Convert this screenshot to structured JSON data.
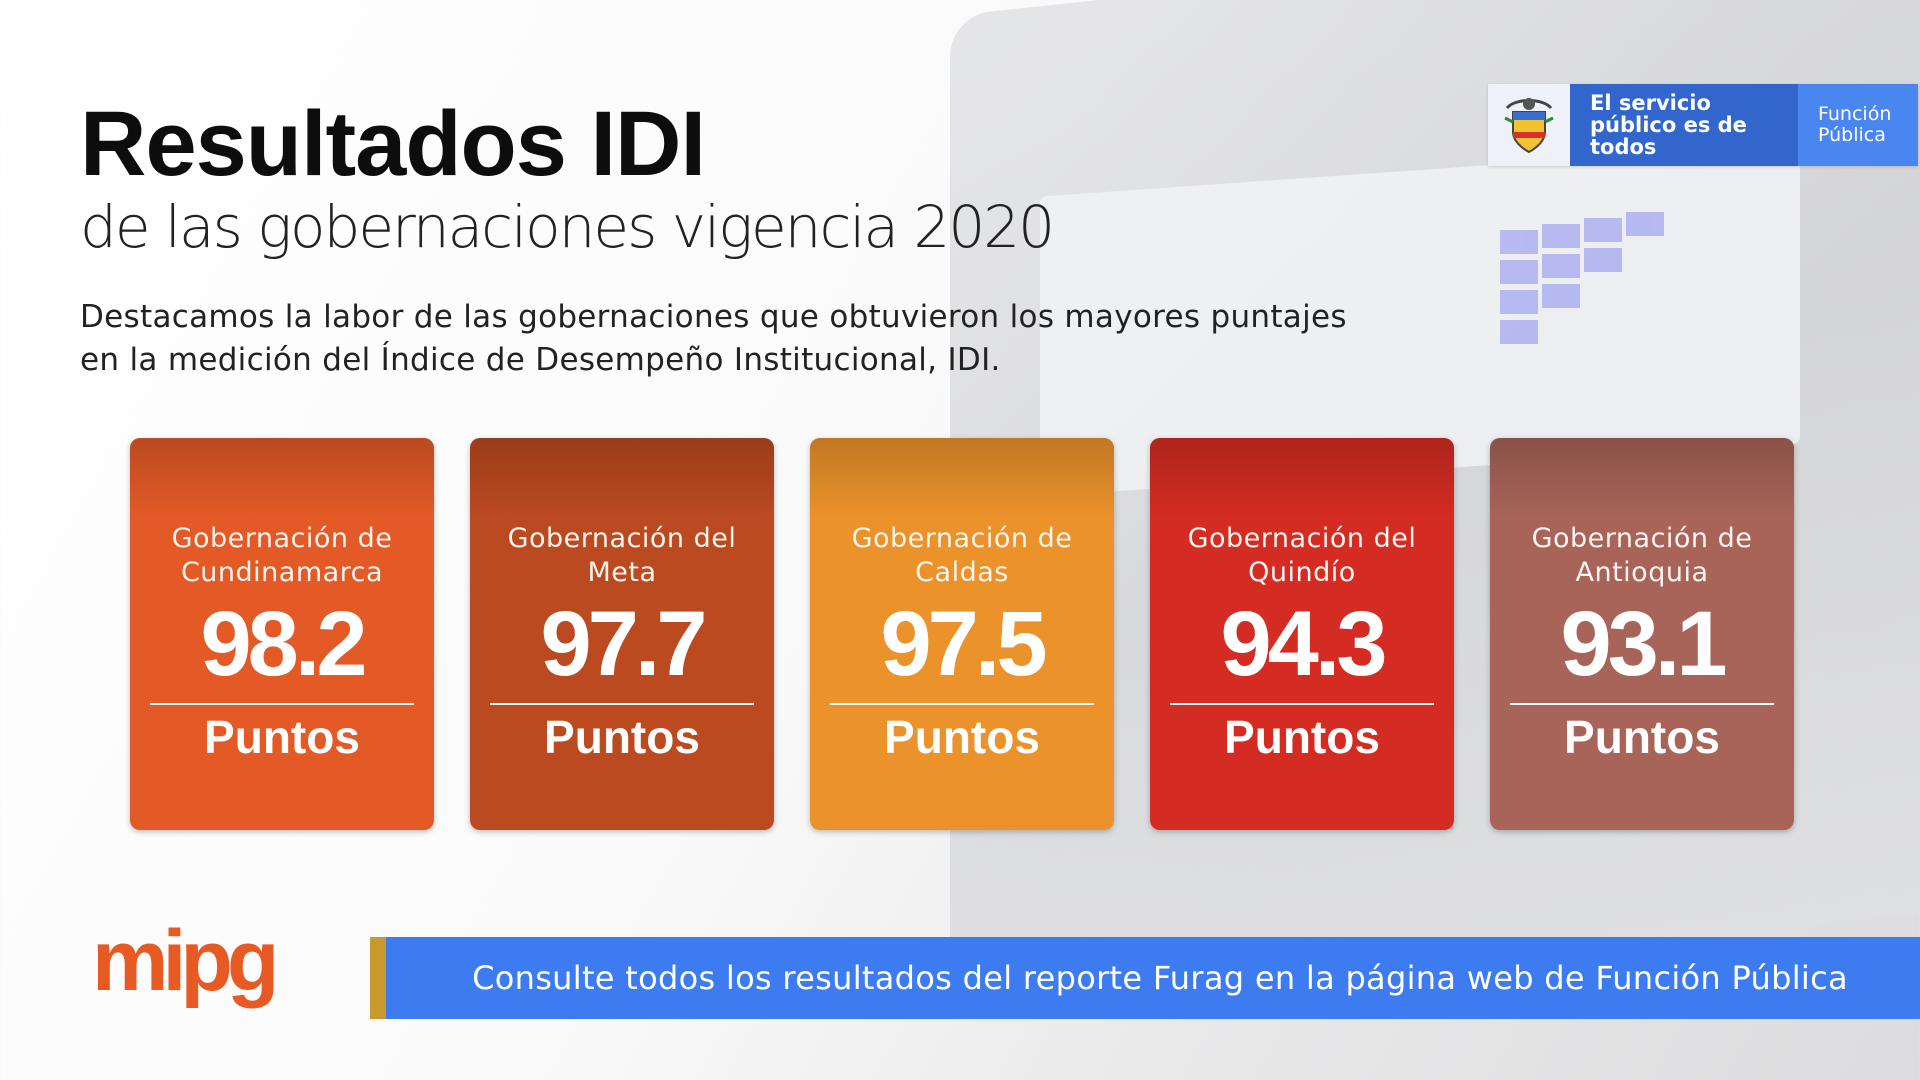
{
  "header": {
    "title": "Resultados IDI",
    "subtitle": "de las gobernaciones vigencia 2020",
    "intro": "Destacamos la labor de las gobernaciones que obtuvieron los mayores puntajes en la medición del Índice de Desempeño Institucional, IDI."
  },
  "brand": {
    "slogan": "El servicio público es de todos",
    "entity": "Función Pública",
    "logo_text": "mipg",
    "shield_icon": "colombia-coat-of-arms-icon"
  },
  "cards": [
    {
      "name": "Gobernación de Cundinamarca",
      "score": "98.2",
      "unit": "Puntos",
      "color": "#e35a27"
    },
    {
      "name": "Gobernación del Meta",
      "score": "97.7",
      "unit": "Puntos",
      "color": "#bb4a20"
    },
    {
      "name": "Gobernación de Caldas",
      "score": "97.5",
      "unit": "Puntos",
      "color": "#eb922b"
    },
    {
      "name": "Gobernación del Quindío",
      "score": "94.3",
      "unit": "Puntos",
      "color": "#d42c22"
    },
    {
      "name": "Gobernación de Antioquia",
      "score": "93.1",
      "unit": "Puntos",
      "color": "#a86459"
    }
  ],
  "footer": {
    "cta_text": "Consulte todos los resultados del reporte Furag en la página web de Función Pública",
    "cta_color": "#3d7cf0",
    "stripe_color": "#c89a2e",
    "logo_color": "#e85a24"
  }
}
